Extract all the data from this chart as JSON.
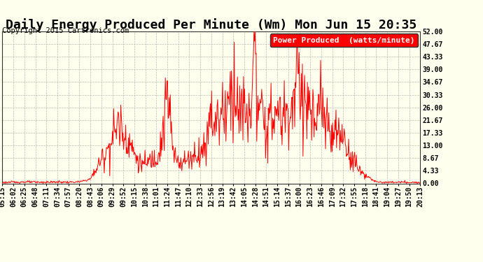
{
  "title": "Daily Energy Produced Per Minute (Wm) Mon Jun 15 20:35",
  "copyright": "Copyright 2015 Cartronics.com",
  "legend_label": "Power Produced  (watts/minute)",
  "line_color": "#ff0000",
  "bg_color": "#ffffee",
  "grid_color": "#aaaaaa",
  "y_min": 0.0,
  "y_max": 52.0,
  "y_ticks": [
    0.0,
    4.33,
    8.67,
    13.0,
    17.33,
    21.67,
    26.0,
    30.33,
    34.67,
    39.0,
    43.33,
    47.67,
    52.0
  ],
  "x_tick_labels": [
    "05:15",
    "06:02",
    "06:25",
    "06:48",
    "07:11",
    "07:34",
    "07:57",
    "08:20",
    "08:43",
    "09:06",
    "09:29",
    "09:52",
    "10:15",
    "10:38",
    "11:01",
    "11:24",
    "11:47",
    "12:10",
    "12:33",
    "12:56",
    "13:19",
    "13:42",
    "14:05",
    "14:28",
    "14:51",
    "15:14",
    "15:37",
    "16:00",
    "16:23",
    "16:46",
    "17:09",
    "17:32",
    "17:55",
    "18:18",
    "18:41",
    "19:04",
    "19:27",
    "19:50",
    "20:13"
  ],
  "title_fontsize": 13,
  "copyright_fontsize": 7.5,
  "axis_fontsize": 7,
  "legend_fontsize": 8
}
